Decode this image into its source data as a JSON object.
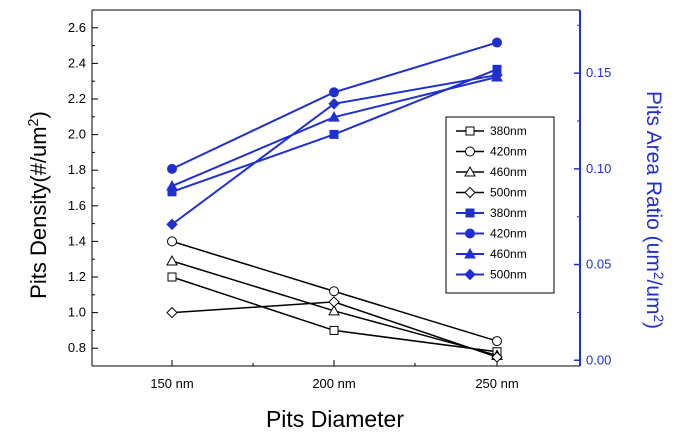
{
  "chart_data": {
    "type": "line",
    "categories": [
      "150 nm",
      "200 nm",
      "250 nm"
    ],
    "xlabel": "Pits Diameter",
    "ylabel": "Pits Density(#/um2)",
    "y2label": "Pits Area Ratio (um2/um2)",
    "ylim": [
      0.7,
      2.7
    ],
    "y2lim": [
      -0.003,
      0.183
    ],
    "yticks": [
      "0.8",
      "1.0",
      "1.2",
      "1.4",
      "1.6",
      "1.8",
      "2.0",
      "2.2",
      "2.4",
      "2.6"
    ],
    "y2ticks": [
      "0.00",
      "0.05",
      "0.10",
      "0.15"
    ],
    "legend_position": "right-center",
    "colors": {
      "left_series": "#000000",
      "right_series": "#1f2fd0",
      "right_axis": "#1f2fd0"
    },
    "series": [
      {
        "name": "380nm",
        "axis": "left",
        "marker": "square-open",
        "values": [
          1.2,
          0.9,
          0.78
        ]
      },
      {
        "name": "420nm",
        "axis": "left",
        "marker": "circle-open",
        "values": [
          1.4,
          1.12,
          0.84
        ]
      },
      {
        "name": "460nm",
        "axis": "left",
        "marker": "triangle-open",
        "values": [
          1.29,
          1.01,
          0.76
        ]
      },
      {
        "name": "500nm",
        "axis": "left",
        "marker": "diamond-open",
        "values": [
          1.0,
          1.06,
          0.75
        ]
      },
      {
        "name": "380nm",
        "axis": "right",
        "marker": "square-filled",
        "values": [
          0.088,
          0.118,
          0.152
        ]
      },
      {
        "name": "420nm",
        "axis": "right",
        "marker": "circle-filled",
        "values": [
          0.1,
          0.14,
          0.166
        ]
      },
      {
        "name": "460nm",
        "axis": "right",
        "marker": "triangle-filled",
        "values": [
          0.091,
          0.127,
          0.148
        ]
      },
      {
        "name": "500nm",
        "axis": "right",
        "marker": "diamond-filled",
        "values": [
          0.071,
          0.134,
          0.149
        ]
      }
    ]
  }
}
